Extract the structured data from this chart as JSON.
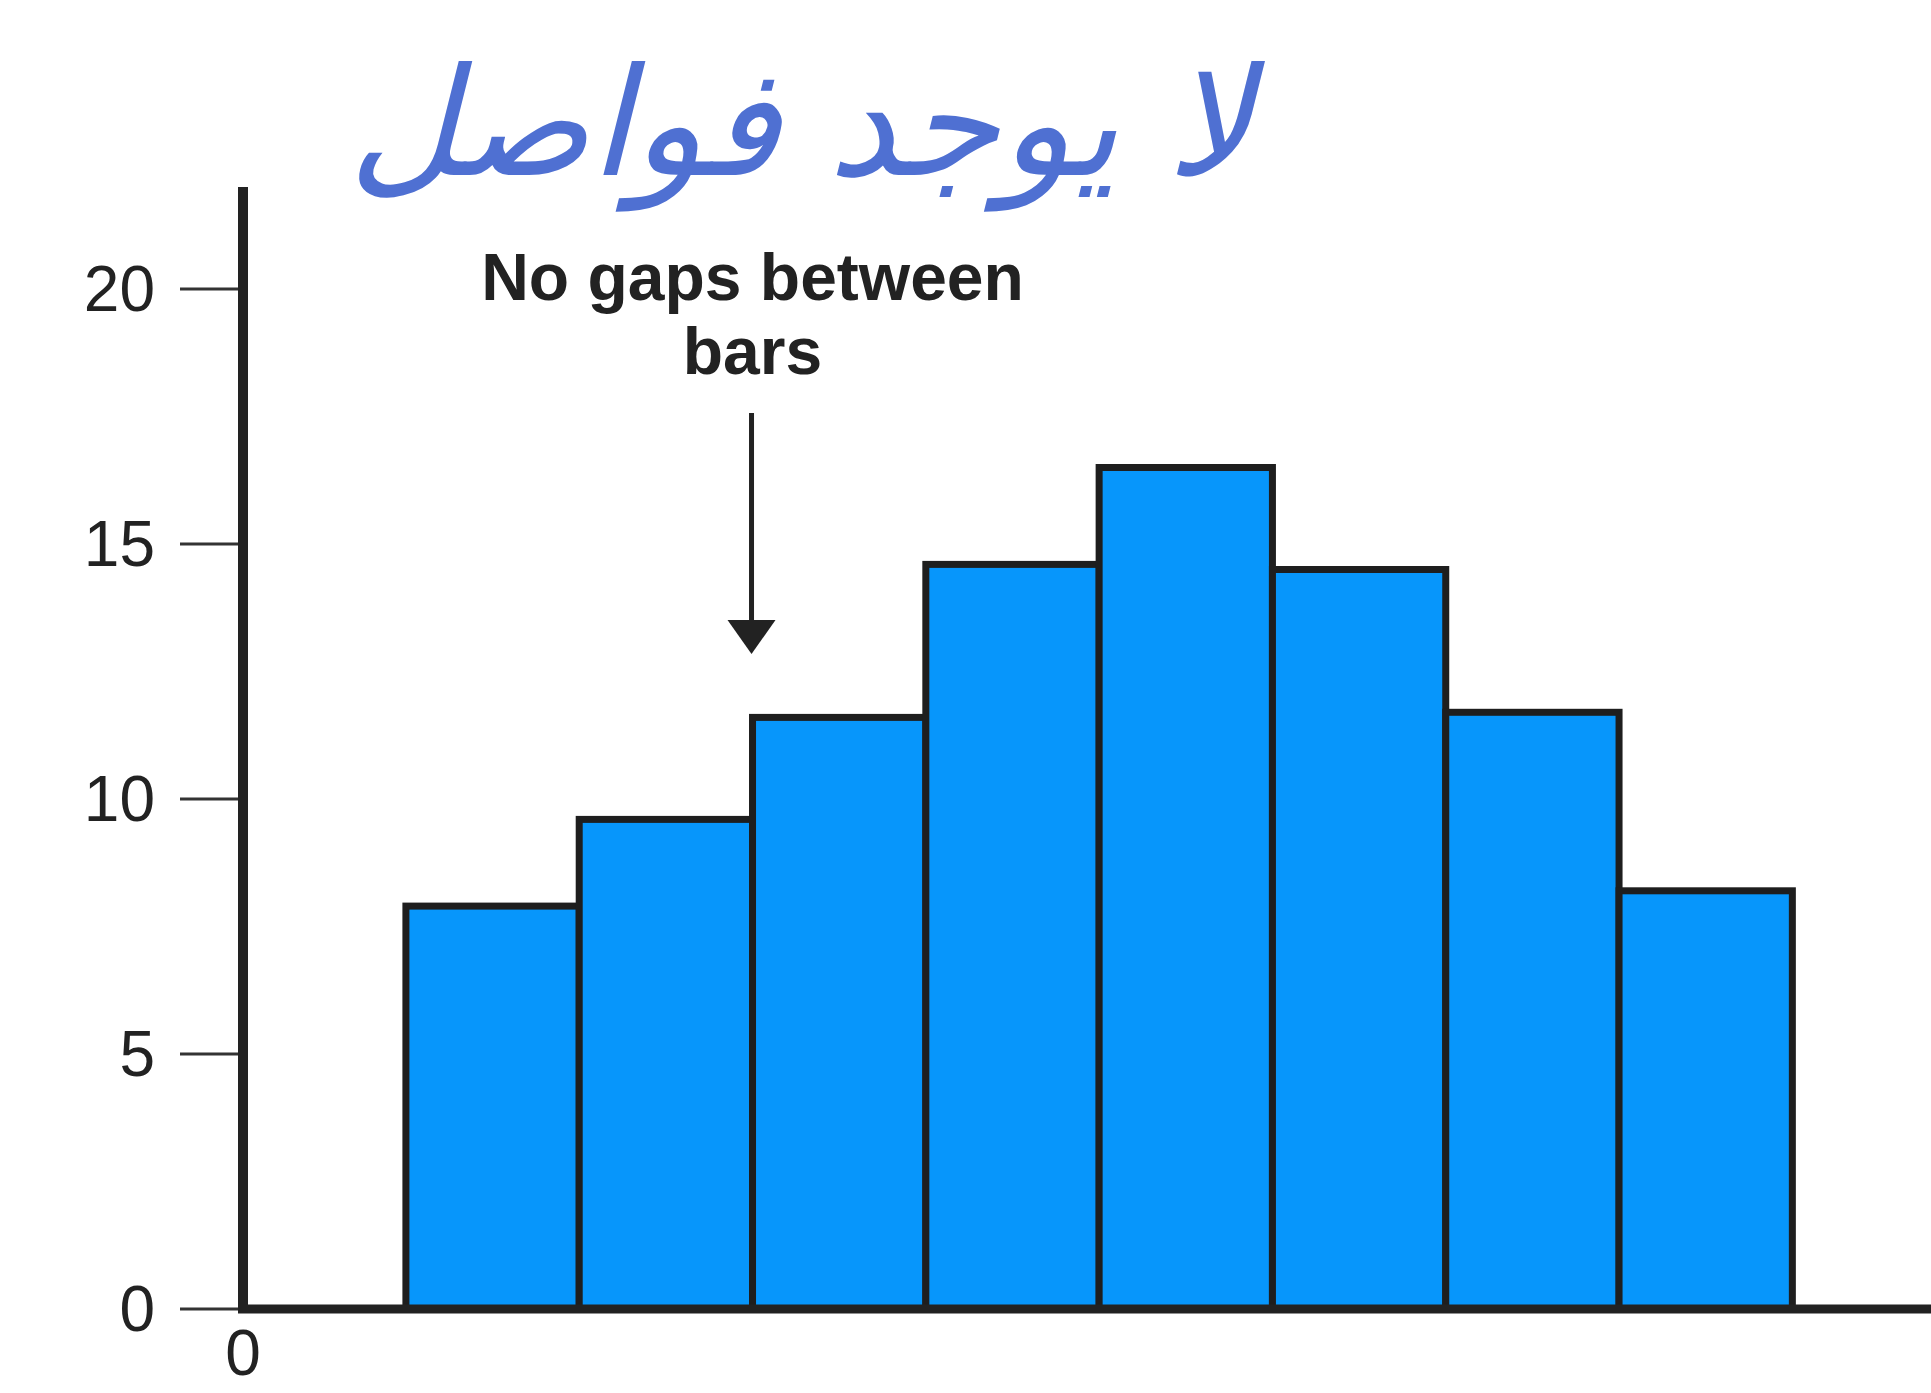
{
  "chart_data": {
    "type": "bar",
    "categories": [
      null,
      null,
      null,
      null,
      null,
      null,
      null,
      null
    ],
    "values": [
      7.9,
      9.6,
      11.6,
      14.6,
      16.5,
      14.5,
      11.7,
      8.2
    ],
    "color": "#0796fb",
    "ylim": [
      0,
      22
    ],
    "yticks": [
      0,
      5,
      10,
      15,
      20
    ],
    "annotations": [
      "لا يوجد فواصل",
      "No gaps between bars",
      "0"
    ]
  }
}
